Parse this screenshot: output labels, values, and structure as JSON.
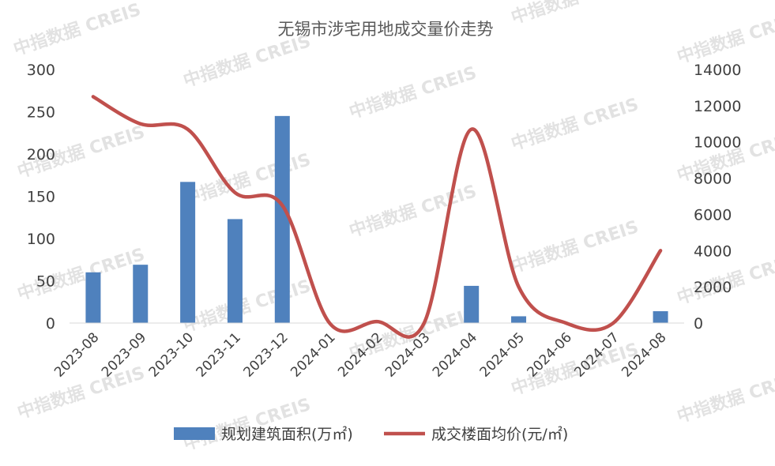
{
  "watermark_text": "中指数据 CREIS",
  "chart_data": {
    "type": "bar+line",
    "title": "无锡市涉宅用地成交量价走势",
    "categories": [
      "2023-08",
      "2023-09",
      "2023-10",
      "2023-11",
      "2023-12",
      "2024-01",
      "2024-02",
      "2024-03",
      "2024-04",
      "2024-05",
      "2024-06",
      "2024-07",
      "2024-08"
    ],
    "series": [
      {
        "name": "规划建筑面积(万㎡)",
        "type": "bar",
        "axis": "left",
        "color": "#4f81bd",
        "values": [
          60,
          69,
          167,
          123,
          245,
          0,
          0,
          0,
          44,
          8,
          0,
          0,
          14
        ]
      },
      {
        "name": "成交楼面均价(元/㎡)",
        "type": "line",
        "axis": "right",
        "color": "#c0504d",
        "smooth": true,
        "values": [
          12500,
          11000,
          10700,
          7200,
          6500,
          0,
          80,
          0,
          10700,
          2000,
          0,
          0,
          4000
        ]
      }
    ],
    "y_left": {
      "min": 0,
      "max": 300,
      "ticks": [
        0,
        50,
        100,
        150,
        200,
        250,
        300
      ]
    },
    "y_right": {
      "min": 0,
      "max": 14000,
      "ticks": [
        0,
        2000,
        4000,
        6000,
        8000,
        10000,
        12000,
        14000
      ]
    },
    "grid": false,
    "legend": "bottom"
  }
}
